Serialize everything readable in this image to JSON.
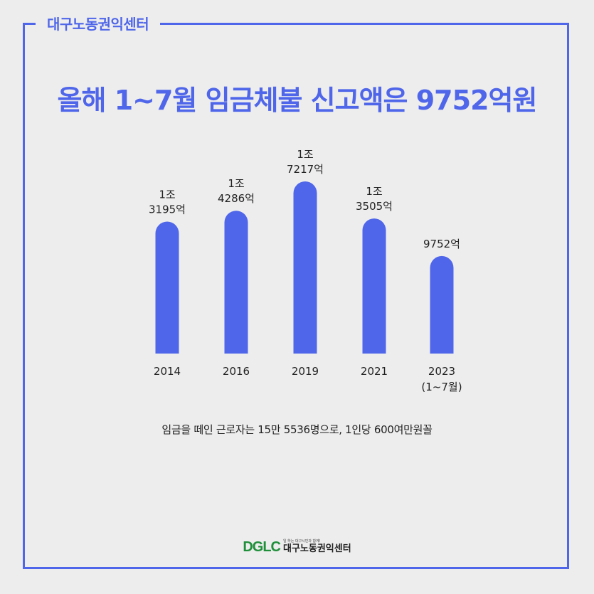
{
  "header": {
    "label": "대구노동권익센터"
  },
  "title": "올해 1~7월 임금체불 신고액은 9752억원",
  "subtitle": "임금을 떼인 근로자는 15만 5536명으로, 1인당 600여만원꼴",
  "footer": {
    "logo_mark": "DGLC",
    "tagline": "일 하는 대구시민과 함께!",
    "name": "대구노동권익센터"
  },
  "colors": {
    "accent": "#4f66ea",
    "background": "#ededed"
  },
  "chart_data": {
    "type": "bar",
    "categories": [
      "2014",
      "2016",
      "2019",
      "2021",
      "2023"
    ],
    "category_sublabels": [
      "",
      "",
      "",
      "",
      "(1~7월)"
    ],
    "values": [
      13195,
      14286,
      17217,
      13505,
      9752
    ],
    "value_labels": [
      [
        "1조",
        "3195억"
      ],
      [
        "1조",
        "4286억"
      ],
      [
        "1조",
        "7217억"
      ],
      [
        "1조",
        "3505억"
      ],
      [
        "9752억"
      ]
    ],
    "unit": "억원",
    "color": "#4f66ea",
    "grid": false,
    "legend": "none"
  }
}
